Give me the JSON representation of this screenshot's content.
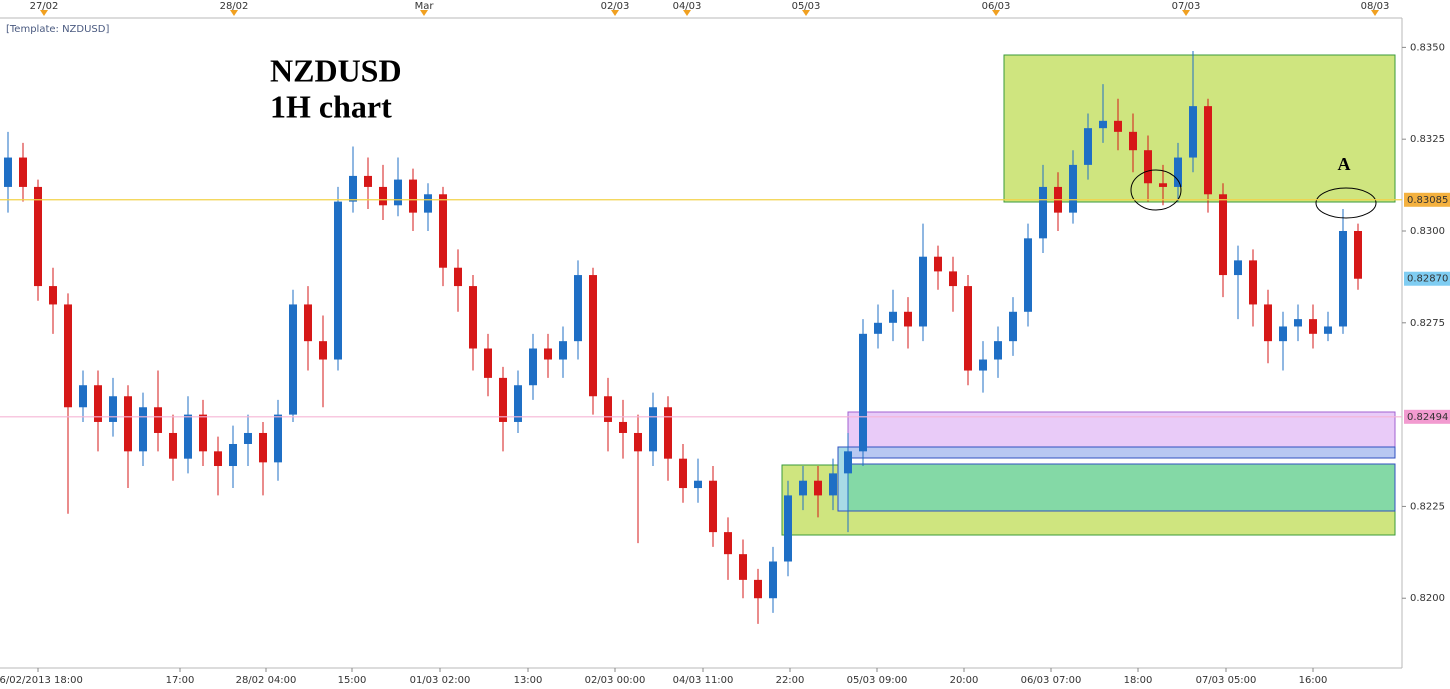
{
  "chart_data": {
    "type": "candlestick",
    "template": "[Template: NZDUSD]",
    "title": "NZDUSD",
    "subtitle": "1H chart",
    "annotation": "A",
    "up_color": "#1f6fc5",
    "down_color": "#d61818",
    "ylim": [
      0.8181,
      0.8358
    ],
    "yticks": [
      {
        "value": 0.835,
        "label": "0.8350"
      },
      {
        "value": 0.8325,
        "label": "0.8325"
      },
      {
        "value": 0.83,
        "label": "0.8300"
      },
      {
        "value": 0.8275,
        "label": "0.8275"
      },
      {
        "value": 0.8225,
        "label": "0.8225"
      },
      {
        "value": 0.82,
        "label": "0.8200"
      }
    ],
    "price_markers": [
      {
        "value": 0.83085,
        "label": "0.83085",
        "color": "#f4b13f",
        "line": "#f2d24a"
      },
      {
        "value": 0.8287,
        "label": "0.82870",
        "color": "#7fcdf2",
        "line": null
      },
      {
        "value": 0.82494,
        "label": "0.82494",
        "color": "#f29bd0",
        "line": "#f5b5d5"
      }
    ],
    "top_labels": [
      "27/02",
      "28/02",
      "Mar",
      "02/03",
      "04/03",
      "05/03",
      "06/03",
      "07/03",
      "08/03"
    ],
    "bottom_labels": [
      "26/02/2013 18:00",
      "17:00",
      "28/02 04:00",
      "15:00",
      "01/03 02:00",
      "13:00",
      "02/03 00:00",
      "04/03 11:00",
      "22:00",
      "05/03 09:00",
      "20:00",
      "06/03 07:00",
      "18:00",
      "07/03 05:00",
      "16:00"
    ],
    "open": [
      0.8312,
      0.832,
      0.8312,
      0.8285,
      0.828,
      0.8252,
      0.8258,
      0.8248,
      0.8255,
      0.824,
      0.8252,
      0.8245,
      0.8238,
      0.825,
      0.824,
      0.8236,
      0.8242,
      0.8245,
      0.8237,
      0.825,
      0.828,
      0.827,
      0.8265,
      0.8308,
      0.8315,
      0.8312,
      0.8307,
      0.8314,
      0.8305,
      0.831,
      0.829,
      0.8285,
      0.8268,
      0.826,
      0.8248,
      0.8258,
      0.8268,
      0.8265,
      0.827,
      0.8288,
      0.8255,
      0.8248,
      0.8245,
      0.824,
      0.8252,
      0.8238,
      0.823,
      0.8232,
      0.8218,
      0.8212,
      0.8205,
      0.82,
      0.821,
      0.8228,
      0.8232,
      0.8228,
      0.8234,
      0.824,
      0.8272,
      0.8275,
      0.8278,
      0.8274,
      0.8293,
      0.8289,
      0.8285,
      0.8262,
      0.8265,
      0.827,
      0.8278,
      0.8298,
      0.8312,
      0.8305,
      0.8318,
      0.8328,
      0.833,
      0.8327,
      0.8322,
      0.8313,
      0.8312,
      0.832,
      0.8334,
      0.831,
      0.8288,
      0.8292,
      0.828,
      0.827,
      0.8274,
      0.8276,
      0.8272,
      0.8274,
      0.83
    ],
    "high": [
      0.8327,
      0.8324,
      0.8314,
      0.829,
      0.8283,
      0.8262,
      0.8262,
      0.826,
      0.8258,
      0.8256,
      0.8262,
      0.825,
      0.8255,
      0.8254,
      0.8244,
      0.8247,
      0.825,
      0.8248,
      0.8254,
      0.8284,
      0.8285,
      0.8277,
      0.8312,
      0.8323,
      0.832,
      0.8318,
      0.832,
      0.8317,
      0.8313,
      0.8312,
      0.8295,
      0.8288,
      0.8272,
      0.8263,
      0.8262,
      0.8272,
      0.8272,
      0.8274,
      0.8292,
      0.829,
      0.826,
      0.8254,
      0.825,
      0.8256,
      0.8255,
      0.8242,
      0.8238,
      0.8236,
      0.8222,
      0.8216,
      0.8208,
      0.8214,
      0.8232,
      0.8236,
      0.8236,
      0.8238,
      0.8245,
      0.8276,
      0.828,
      0.8284,
      0.8282,
      0.8302,
      0.8296,
      0.8293,
      0.8288,
      0.827,
      0.8274,
      0.8282,
      0.8302,
      0.8318,
      0.8316,
      0.8322,
      0.8332,
      0.834,
      0.8336,
      0.8332,
      0.8326,
      0.8318,
      0.8324,
      0.8349,
      0.8336,
      0.8313,
      0.8296,
      0.8295,
      0.8284,
      0.8278,
      0.828,
      0.828,
      0.8278,
      0.8306,
      0.8302
    ],
    "low": [
      0.8305,
      0.8308,
      0.8281,
      0.8272,
      0.8223,
      0.8248,
      0.824,
      0.8244,
      0.823,
      0.8236,
      0.824,
      0.8232,
      0.8234,
      0.8236,
      0.8228,
      0.823,
      0.8236,
      0.8228,
      0.8232,
      0.8248,
      0.8262,
      0.8252,
      0.8262,
      0.8305,
      0.8306,
      0.8303,
      0.8304,
      0.83,
      0.83,
      0.8285,
      0.8278,
      0.8262,
      0.8255,
      0.824,
      0.8245,
      0.8254,
      0.826,
      0.826,
      0.8265,
      0.825,
      0.824,
      0.8238,
      0.8215,
      0.8236,
      0.8232,
      0.8226,
      0.8226,
      0.8214,
      0.8205,
      0.82,
      0.8193,
      0.8196,
      0.8206,
      0.8224,
      0.8222,
      0.8224,
      0.8218,
      0.8236,
      0.8268,
      0.827,
      0.8268,
      0.827,
      0.8284,
      0.8278,
      0.8258,
      0.8256,
      0.826,
      0.8266,
      0.8274,
      0.8294,
      0.83,
      0.8302,
      0.8314,
      0.8324,
      0.8322,
      0.8316,
      0.8308,
      0.8307,
      0.8308,
      0.8316,
      0.8305,
      0.8282,
      0.8276,
      0.8274,
      0.8264,
      0.8262,
      0.827,
      0.8268,
      0.827,
      0.8272,
      0.8284
    ],
    "close": [
      0.832,
      0.8312,
      0.8285,
      0.828,
      0.8252,
      0.8258,
      0.8248,
      0.8255,
      0.824,
      0.8252,
      0.8245,
      0.8238,
      0.825,
      0.824,
      0.8236,
      0.8242,
      0.8245,
      0.8237,
      0.825,
      0.828,
      0.827,
      0.8265,
      0.8308,
      0.8315,
      0.8312,
      0.8307,
      0.8314,
      0.8305,
      0.831,
      0.829,
      0.8285,
      0.8268,
      0.826,
      0.8248,
      0.8258,
      0.8268,
      0.8265,
      0.827,
      0.8288,
      0.8255,
      0.8248,
      0.8245,
      0.824,
      0.8252,
      0.8238,
      0.823,
      0.8232,
      0.8218,
      0.8212,
      0.8205,
      0.82,
      0.821,
      0.8228,
      0.8232,
      0.8228,
      0.8234,
      0.824,
      0.8272,
      0.8275,
      0.8278,
      0.8274,
      0.8293,
      0.8289,
      0.8285,
      0.8262,
      0.8265,
      0.827,
      0.8278,
      0.8298,
      0.8312,
      0.8305,
      0.8318,
      0.8328,
      0.833,
      0.8327,
      0.8322,
      0.8313,
      0.8312,
      0.832,
      0.8334,
      0.831,
      0.8288,
      0.8292,
      0.828,
      0.827,
      0.8274,
      0.8276,
      0.8272,
      0.8274,
      0.83,
      0.8287
    ]
  }
}
